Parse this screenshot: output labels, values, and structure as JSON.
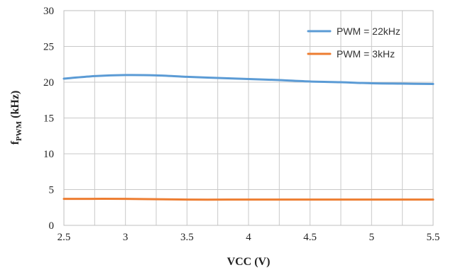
{
  "chart_data": {
    "type": "line",
    "title": "",
    "xlabel": "VCC (V)",
    "ylabel_main": "f",
    "ylabel_sub": "PWM",
    "ylabel_unit": " (kHz)",
    "xlim": [
      2.5,
      5.5
    ],
    "ylim": [
      0,
      30
    ],
    "x_major_ticks": [
      2.5,
      3,
      3.5,
      4,
      4.5,
      5,
      5.5
    ],
    "x_tick_labels": [
      "2.5",
      "3",
      "3.5",
      "4",
      "4.5",
      "5",
      "5.5"
    ],
    "x_minor_gridlines": [
      2.75,
      3.25,
      3.75,
      4.25,
      4.75,
      5.25
    ],
    "y_ticks": [
      0,
      5,
      10,
      15,
      20,
      25,
      30
    ],
    "y_tick_labels": [
      "0",
      "5",
      "10",
      "15",
      "20",
      "25",
      "30"
    ],
    "grid": true,
    "legend_position": "top-right",
    "series": [
      {
        "name": "PWM = 22kHz",
        "color": "#5b9bd5",
        "x": [
          2.5,
          2.75,
          3.0,
          3.25,
          3.5,
          3.75,
          4.0,
          4.25,
          4.5,
          4.75,
          5.0,
          5.25,
          5.5
        ],
        "y": [
          20.5,
          20.85,
          21.0,
          20.95,
          20.75,
          20.6,
          20.45,
          20.3,
          20.1,
          20.0,
          19.85,
          19.8,
          19.75
        ]
      },
      {
        "name": "PWM = 3kHz",
        "color": "#ed7d31",
        "x": [
          2.5,
          3.0,
          3.5,
          4.0,
          4.5,
          5.0,
          5.5
        ],
        "y": [
          3.7,
          3.7,
          3.6,
          3.6,
          3.6,
          3.6,
          3.6
        ]
      }
    ]
  }
}
